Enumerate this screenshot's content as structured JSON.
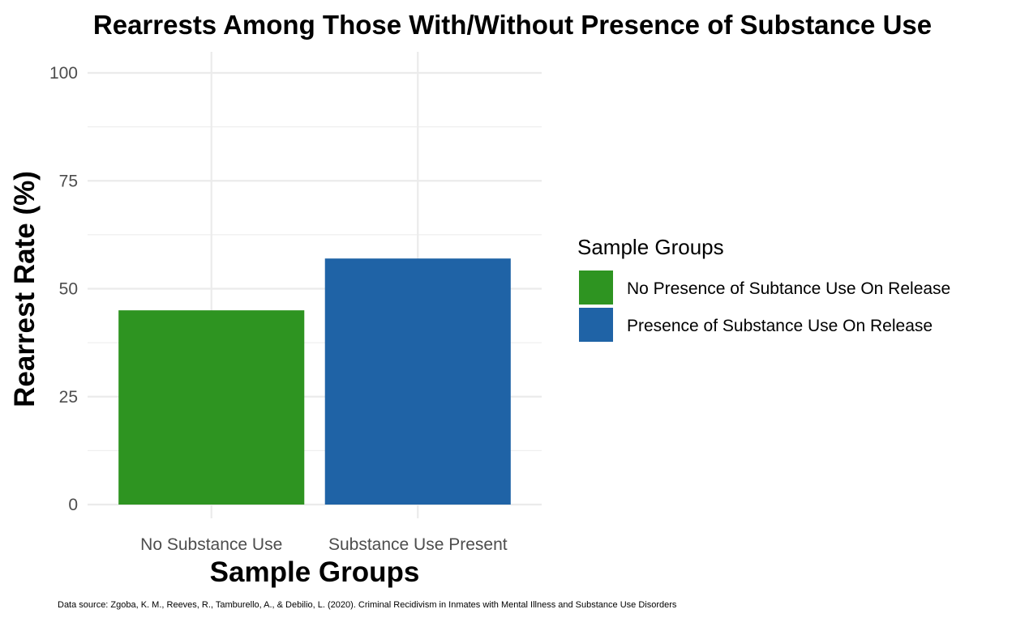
{
  "chart_data": {
    "type": "bar",
    "title": "Rearrests Among Those With/Without Presence of Substance Use",
    "xlabel": "Sample Groups",
    "ylabel": "Rearrest Rate (%)",
    "categories": [
      "No Substance Use",
      "Substance Use Present"
    ],
    "values": [
      45,
      57
    ],
    "colors": [
      "#2e9421",
      "#1f63a6"
    ],
    "ylim": [
      0,
      100
    ],
    "yticks": [
      "0",
      "25",
      "50",
      "75",
      "100"
    ],
    "legend": {
      "title": "Sample Groups",
      "position": "right",
      "items": [
        {
          "label": "No Presence of Subtance Use On Release",
          "color": "#2e9421"
        },
        {
          "label": "Presence of Substance Use On Release",
          "color": "#1f63a6"
        }
      ]
    },
    "grid": true,
    "caption": "Data source: Zgoba, K. M., Reeves, R., Tamburello, A., & Debilio, L. (2020). Criminal Recidivism in Inmates with Mental Illness and Substance Use Disorders"
  }
}
